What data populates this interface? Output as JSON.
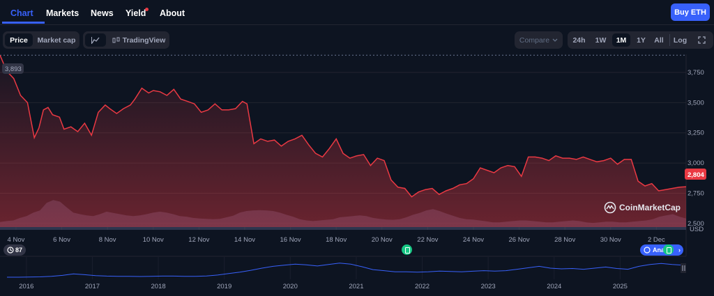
{
  "tabs": [
    {
      "label": "Chart"
    },
    {
      "label": "Markets"
    },
    {
      "label": "News"
    },
    {
      "label": "Yield"
    },
    {
      "label": "About"
    }
  ],
  "buy_button": "Buy ETH",
  "metric_toggle": {
    "price": "Price",
    "market_cap": "Market cap",
    "selected": "Price"
  },
  "tradingview": "TradingView",
  "compare": "Compare",
  "ranges": [
    "24h",
    "1W",
    "1M",
    "1Y",
    "All",
    "Log"
  ],
  "selected_range": "1M",
  "brand": "CoinMarketCap",
  "events_count": "87",
  "analysis_label": "Ana",
  "colors": {
    "price_line": "#ea3943",
    "accent": "#3861fb",
    "volume": "#3d4363",
    "overview_line": "#3861fb",
    "background": "#0d1421"
  },
  "chart_data": {
    "type": "line",
    "ylabel": "USD",
    "y_ticks": [
      "3,750",
      "3,500",
      "3,250",
      "3,000",
      "2,750",
      "2,500"
    ],
    "ylim": [
      2470,
      3900
    ],
    "start_marker": "3,893",
    "current_price": "2,804",
    "x_ticks": [
      "4 Nov",
      "6 Nov",
      "8 Nov",
      "10 Nov",
      "12 Nov",
      "14 Nov",
      "16 Nov",
      "18 Nov",
      "20 Nov",
      "22 Nov",
      "24 Nov",
      "26 Nov",
      "28 Nov",
      "30 Nov",
      "2 Dec"
    ],
    "x_days": [
      4,
      6,
      8,
      10,
      12,
      14,
      16,
      18,
      20,
      22,
      24,
      26,
      28,
      30,
      32
    ],
    "x_range": [
      3.3,
      33.3
    ],
    "series": [
      {
        "x": [
          3.3,
          3.6,
          3.9,
          4.2,
          4.5,
          4.8,
          5.0,
          5.2,
          5.4,
          5.6,
          5.9,
          6.1,
          6.4,
          6.7,
          7.0,
          7.3,
          7.6,
          7.9,
          8.1,
          8.4,
          8.7,
          9.0,
          9.2,
          9.5,
          9.8,
          10.0,
          10.3,
          10.6,
          10.9,
          11.2,
          11.5,
          11.8,
          12.1,
          12.4,
          12.7,
          13.0,
          13.3,
          13.6,
          13.9,
          14.1,
          14.4,
          14.7,
          15.0,
          15.3,
          15.6,
          15.9,
          16.2,
          16.5,
          16.8,
          17.1,
          17.4,
          17.7,
          18.0,
          18.3,
          18.6,
          18.9,
          19.2,
          19.5,
          19.8,
          20.1,
          20.4,
          20.7,
          21.0,
          21.3,
          21.6,
          21.9,
          22.2,
          22.5,
          22.8,
          23.1,
          23.4,
          23.7,
          24.0,
          24.3,
          24.6,
          24.9,
          25.2,
          25.5,
          25.8,
          26.1,
          26.4,
          26.7,
          27.0,
          27.3,
          27.6,
          27.9,
          28.2,
          28.5,
          28.8,
          29.1,
          29.4,
          29.7,
          30.0,
          30.3,
          30.6,
          30.9,
          31.2,
          31.5,
          31.8,
          32.1,
          32.4,
          32.7,
          33.0,
          33.3
        ],
        "values": [
          3893,
          3760,
          3700,
          3560,
          3500,
          3210,
          3290,
          3440,
          3460,
          3400,
          3380,
          3280,
          3300,
          3260,
          3330,
          3230,
          3420,
          3480,
          3450,
          3410,
          3450,
          3480,
          3530,
          3620,
          3580,
          3600,
          3590,
          3560,
          3610,
          3530,
          3510,
          3490,
          3420,
          3440,
          3490,
          3440,
          3440,
          3450,
          3510,
          3490,
          3160,
          3200,
          3180,
          3190,
          3140,
          3180,
          3200,
          3230,
          3150,
          3080,
          3050,
          3120,
          3200,
          3080,
          3040,
          3060,
          3070,
          2980,
          3040,
          3020,
          2860,
          2800,
          2790,
          2720,
          2760,
          2780,
          2790,
          2740,
          2770,
          2790,
          2820,
          2830,
          2870,
          2960,
          2940,
          2920,
          2960,
          2980,
          2970,
          2890,
          3050,
          3050,
          3040,
          3020,
          3060,
          3040,
          3040,
          3030,
          3050,
          3030,
          3010,
          3020,
          3040,
          2990,
          3030,
          3030,
          2850,
          2810,
          2830,
          2770,
          2780,
          2790,
          2800,
          2804
        ]
      }
    ],
    "volume_rel": [
      0.25,
      0.28,
      0.3,
      0.38,
      0.44,
      0.55,
      0.62,
      0.86,
      0.95,
      0.9,
      0.72,
      0.55,
      0.5,
      0.46,
      0.44,
      0.5,
      0.58,
      0.54,
      0.5,
      0.46,
      0.44,
      0.46,
      0.5,
      0.55,
      0.58,
      0.55,
      0.5,
      0.44,
      0.42,
      0.38,
      0.36,
      0.35,
      0.34,
      0.35,
      0.4,
      0.45,
      0.55,
      0.6,
      0.62,
      0.63,
      0.62,
      0.6,
      0.55,
      0.48,
      0.42,
      0.34,
      0.3,
      0.28,
      0.3,
      0.32,
      0.34,
      0.4,
      0.42,
      0.44,
      0.46,
      0.44,
      0.38,
      0.35,
      0.33,
      0.32,
      0.34,
      0.4,
      0.48,
      0.54,
      0.62,
      0.66,
      0.6,
      0.52,
      0.45,
      0.38,
      0.34,
      0.33,
      0.3,
      0.27,
      0.24,
      0.24,
      0.26,
      0.28,
      0.3,
      0.3,
      0.28,
      0.26,
      0.24,
      0.24,
      0.26,
      0.28,
      0.3,
      0.28,
      0.24,
      0.22,
      0.24,
      0.26,
      0.26,
      0.24,
      0.24,
      0.26,
      0.28,
      0.3,
      0.34,
      0.42,
      0.46,
      0.5,
      0.42,
      0.36
    ],
    "overview": {
      "x_ticks": [
        "2016",
        "2017",
        "2018",
        "2019",
        "2020",
        "2021",
        "2022",
        "2023",
        "2024",
        "2025"
      ],
      "x_years": [
        2016,
        2017,
        2018,
        2019,
        2020,
        2021,
        2022,
        2023,
        2024,
        2025
      ],
      "x_range": [
        2015.6,
        2026.0
      ],
      "series_rel": [
        0.0,
        0.0,
        0.01,
        0.02,
        0.05,
        0.1,
        0.18,
        0.14,
        0.09,
        0.06,
        0.05,
        0.05,
        0.04,
        0.05,
        0.06,
        0.06,
        0.05,
        0.05,
        0.07,
        0.12,
        0.2,
        0.28,
        0.38,
        0.5,
        0.6,
        0.66,
        0.72,
        0.68,
        0.62,
        0.7,
        0.78,
        0.72,
        0.58,
        0.42,
        0.36,
        0.3,
        0.3,
        0.28,
        0.3,
        0.34,
        0.32,
        0.3,
        0.33,
        0.36,
        0.34,
        0.36,
        0.44,
        0.52,
        0.6,
        0.5,
        0.46,
        0.48,
        0.44,
        0.5,
        0.56,
        0.48,
        0.44,
        0.6,
        0.7,
        0.76,
        0.7,
        0.66
      ]
    }
  }
}
